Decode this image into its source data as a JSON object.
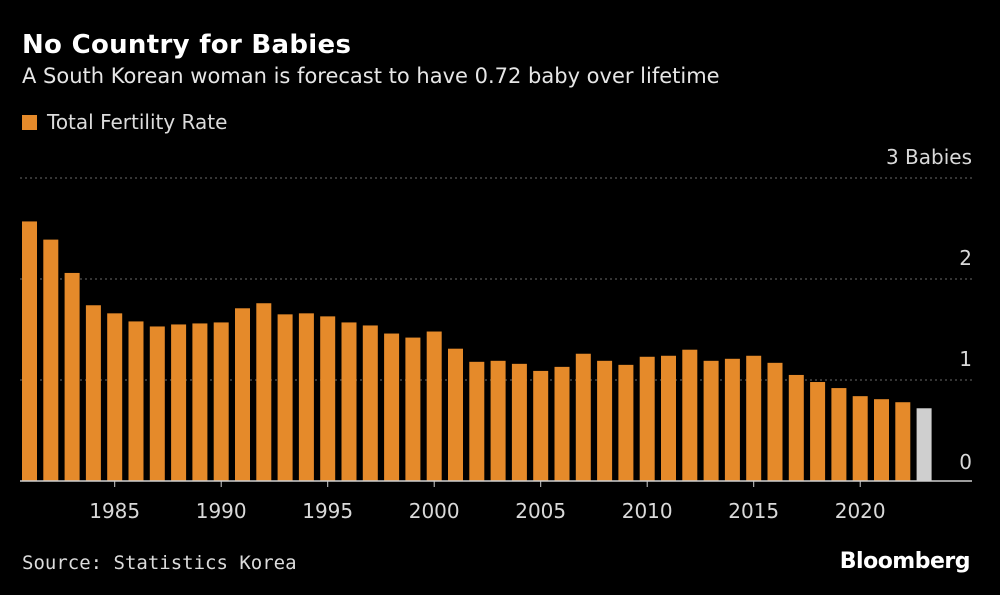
{
  "title": "No Country for Babies",
  "subtitle": "A South Korean woman is forecast to have 0.72 baby over lifetime",
  "legend": {
    "label": "Total Fertility Rate",
    "color": "#e58a2a"
  },
  "source": "Source: Statistics Korea",
  "brand": "Bloomberg",
  "chart_data": {
    "type": "bar",
    "title": "No Country for Babies",
    "xlabel": "",
    "ylabel": "",
    "ylim": [
      0,
      3
    ],
    "grid": true,
    "legend_position": "top-left",
    "y_ticks": [
      {
        "value": 3,
        "label": "3 Babies"
      },
      {
        "value": 2,
        "label": "2"
      },
      {
        "value": 1,
        "label": "1"
      },
      {
        "value": 0,
        "label": "0"
      }
    ],
    "x_ticks": [
      1985,
      1990,
      1995,
      2000,
      2005,
      2010,
      2015,
      2020
    ],
    "bar_color": "#e58a2a",
    "forecast_color": "#cfcfcf",
    "series": [
      {
        "name": "Total Fertility Rate",
        "x": [
          1981,
          1982,
          1983,
          1984,
          1985,
          1986,
          1987,
          1988,
          1989,
          1990,
          1991,
          1992,
          1993,
          1994,
          1995,
          1996,
          1997,
          1998,
          1999,
          2000,
          2001,
          2002,
          2003,
          2004,
          2005,
          2006,
          2007,
          2008,
          2009,
          2010,
          2011,
          2012,
          2013,
          2014,
          2015,
          2016,
          2017,
          2018,
          2019,
          2020,
          2021,
          2022,
          2023
        ],
        "values": [
          2.57,
          2.39,
          2.06,
          1.74,
          1.66,
          1.58,
          1.53,
          1.55,
          1.56,
          1.57,
          1.71,
          1.76,
          1.65,
          1.66,
          1.63,
          1.57,
          1.54,
          1.46,
          1.42,
          1.48,
          1.31,
          1.18,
          1.19,
          1.16,
          1.09,
          1.13,
          1.26,
          1.19,
          1.15,
          1.23,
          1.24,
          1.3,
          1.19,
          1.21,
          1.24,
          1.17,
          1.05,
          0.98,
          0.92,
          0.84,
          0.81,
          0.78,
          0.72
        ],
        "forecast_from": 2023
      }
    ]
  }
}
